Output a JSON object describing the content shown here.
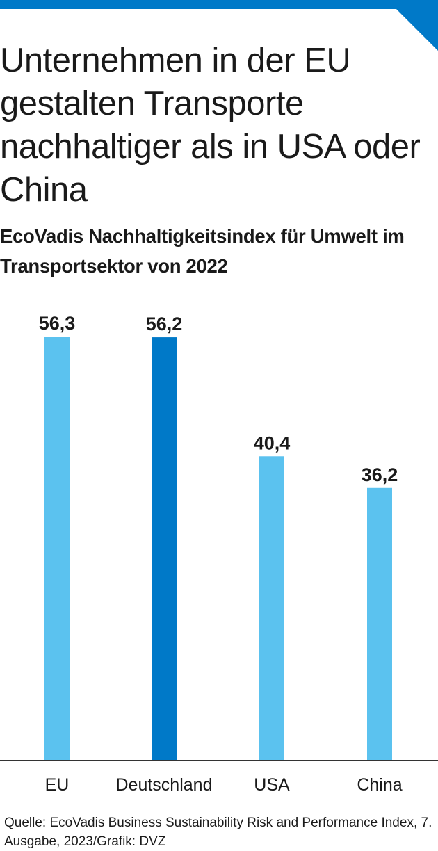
{
  "colors": {
    "accent": "#0079c8",
    "bar_light": "#5bc2ef",
    "bar_highlight": "#0079c8",
    "text": "#1a1a1a",
    "axis": "#333333"
  },
  "headline": "Unternehmen in der EU gestalten Transporte nachhaltiger als in USA oder China",
  "source": "Quelle: EcoVadis Business Sustainability Risk and Performance Index, 7. Ausgabe, 2023/Grafik: DVZ",
  "chart_data": {
    "type": "bar",
    "title": "EcoVadis Nachhaltigkeitsindex für Umwelt im Transportsektor von 2022",
    "xlabel": "",
    "ylabel": "",
    "categories": [
      "EU",
      "Deutschland",
      "USA",
      "China"
    ],
    "values": [
      56.3,
      56.2,
      40.4,
      36.2
    ],
    "value_labels": [
      "56,3",
      "56,2",
      "40,4",
      "36,2"
    ],
    "highlight": [
      false,
      true,
      false,
      false
    ],
    "ylim": [
      0,
      56.3
    ],
    "grid": false,
    "legend": "none"
  }
}
